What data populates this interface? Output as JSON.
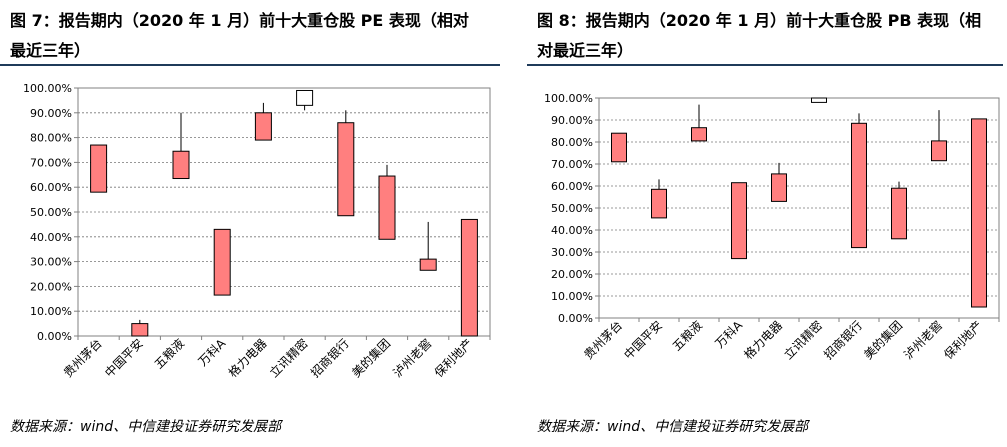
{
  "charts": [
    {
      "title_line1": "图 7：报告期内（2020 年 1 月）前十大重仓股 PE 表现（相对",
      "title_line2": "最近三年）",
      "source": "数据来源：wind、中信建投证券研究发展部"
    },
    {
      "title_line1": "图 8：报告期内（2020 年 1 月）前十大重仓股 PB 表现（相",
      "title_line2": "对最近三年）",
      "source": "数据来源：wind、中信建投证券研究发展部"
    }
  ],
  "chart_data": [
    {
      "type": "candlestick",
      "title": "图 7：报告期内（2020 年 1 月）前十大重仓股 PE 表现（相对最近三年）",
      "ylim": [
        0,
        100
      ],
      "yticks": [
        "0.00%",
        "10.00%",
        "20.00%",
        "30.00%",
        "40.00%",
        "50.00%",
        "60.00%",
        "70.00%",
        "80.00%",
        "90.00%",
        "100.00%"
      ],
      "grid": true,
      "colors": {
        "down": "#ff7f7f",
        "up": "#ffffff",
        "line": "#000000"
      },
      "categories": [
        "贵州茅台",
        "中国平安",
        "五粮液",
        "万科A",
        "格力电器",
        "立讯精密",
        "招商银行",
        "美的集团",
        "泸州老窖",
        "保利地产"
      ],
      "series": [
        {
          "open": 77,
          "close": 58,
          "high": 77,
          "low": 58
        },
        {
          "open": 5,
          "close": 0,
          "high": 6.5,
          "low": 0
        },
        {
          "open": 74.5,
          "close": 63.5,
          "high": 90,
          "low": 63.5
        },
        {
          "open": 43,
          "close": 16.5,
          "high": 43,
          "low": 16.5
        },
        {
          "open": 90,
          "close": 79,
          "high": 94,
          "low": 79
        },
        {
          "open": 93,
          "close": 99,
          "high": 99,
          "low": 91
        },
        {
          "open": 86,
          "close": 48.5,
          "high": 91,
          "low": 48.5
        },
        {
          "open": 64.5,
          "close": 39,
          "high": 69,
          "low": 39
        },
        {
          "open": 31,
          "close": 26.5,
          "high": 46,
          "low": 26.5
        },
        {
          "open": 47,
          "close": 0,
          "high": 47,
          "low": 0
        }
      ]
    },
    {
      "type": "candlestick",
      "title": "图 8：报告期内（2020 年 1 月）前十大重仓股 PB 表现（相对最近三年）",
      "ylim": [
        0,
        100
      ],
      "yticks": [
        "0.00%",
        "10.00%",
        "20.00%",
        "30.00%",
        "40.00%",
        "50.00%",
        "60.00%",
        "70.00%",
        "80.00%",
        "90.00%",
        "100.00%"
      ],
      "grid": true,
      "colors": {
        "down": "#ff7f7f",
        "up": "#ffffff",
        "line": "#000000"
      },
      "categories": [
        "贵州茅台",
        "中国平安",
        "五粮液",
        "万科A",
        "格力电器",
        "立讯精密",
        "招商银行",
        "美的集团",
        "泸州老窖",
        "保利地产"
      ],
      "series": [
        {
          "open": 84,
          "close": 71,
          "high": 84,
          "low": 71
        },
        {
          "open": 58.5,
          "close": 45.5,
          "high": 63,
          "low": 45.5
        },
        {
          "open": 86.5,
          "close": 80.5,
          "high": 97,
          "low": 80.5
        },
        {
          "open": 61.5,
          "close": 27,
          "high": 61.5,
          "low": 27
        },
        {
          "open": 65.5,
          "close": 53,
          "high": 70.5,
          "low": 53
        },
        {
          "open": 98,
          "close": 100,
          "high": 100,
          "low": 98
        },
        {
          "open": 88.5,
          "close": 32,
          "high": 93,
          "low": 32
        },
        {
          "open": 59,
          "close": 36,
          "high": 62,
          "low": 36
        },
        {
          "open": 80.5,
          "close": 71.5,
          "high": 94.5,
          "low": 71.5
        },
        {
          "open": 90.5,
          "close": 5,
          "high": 90.5,
          "low": 5
        }
      ]
    }
  ]
}
